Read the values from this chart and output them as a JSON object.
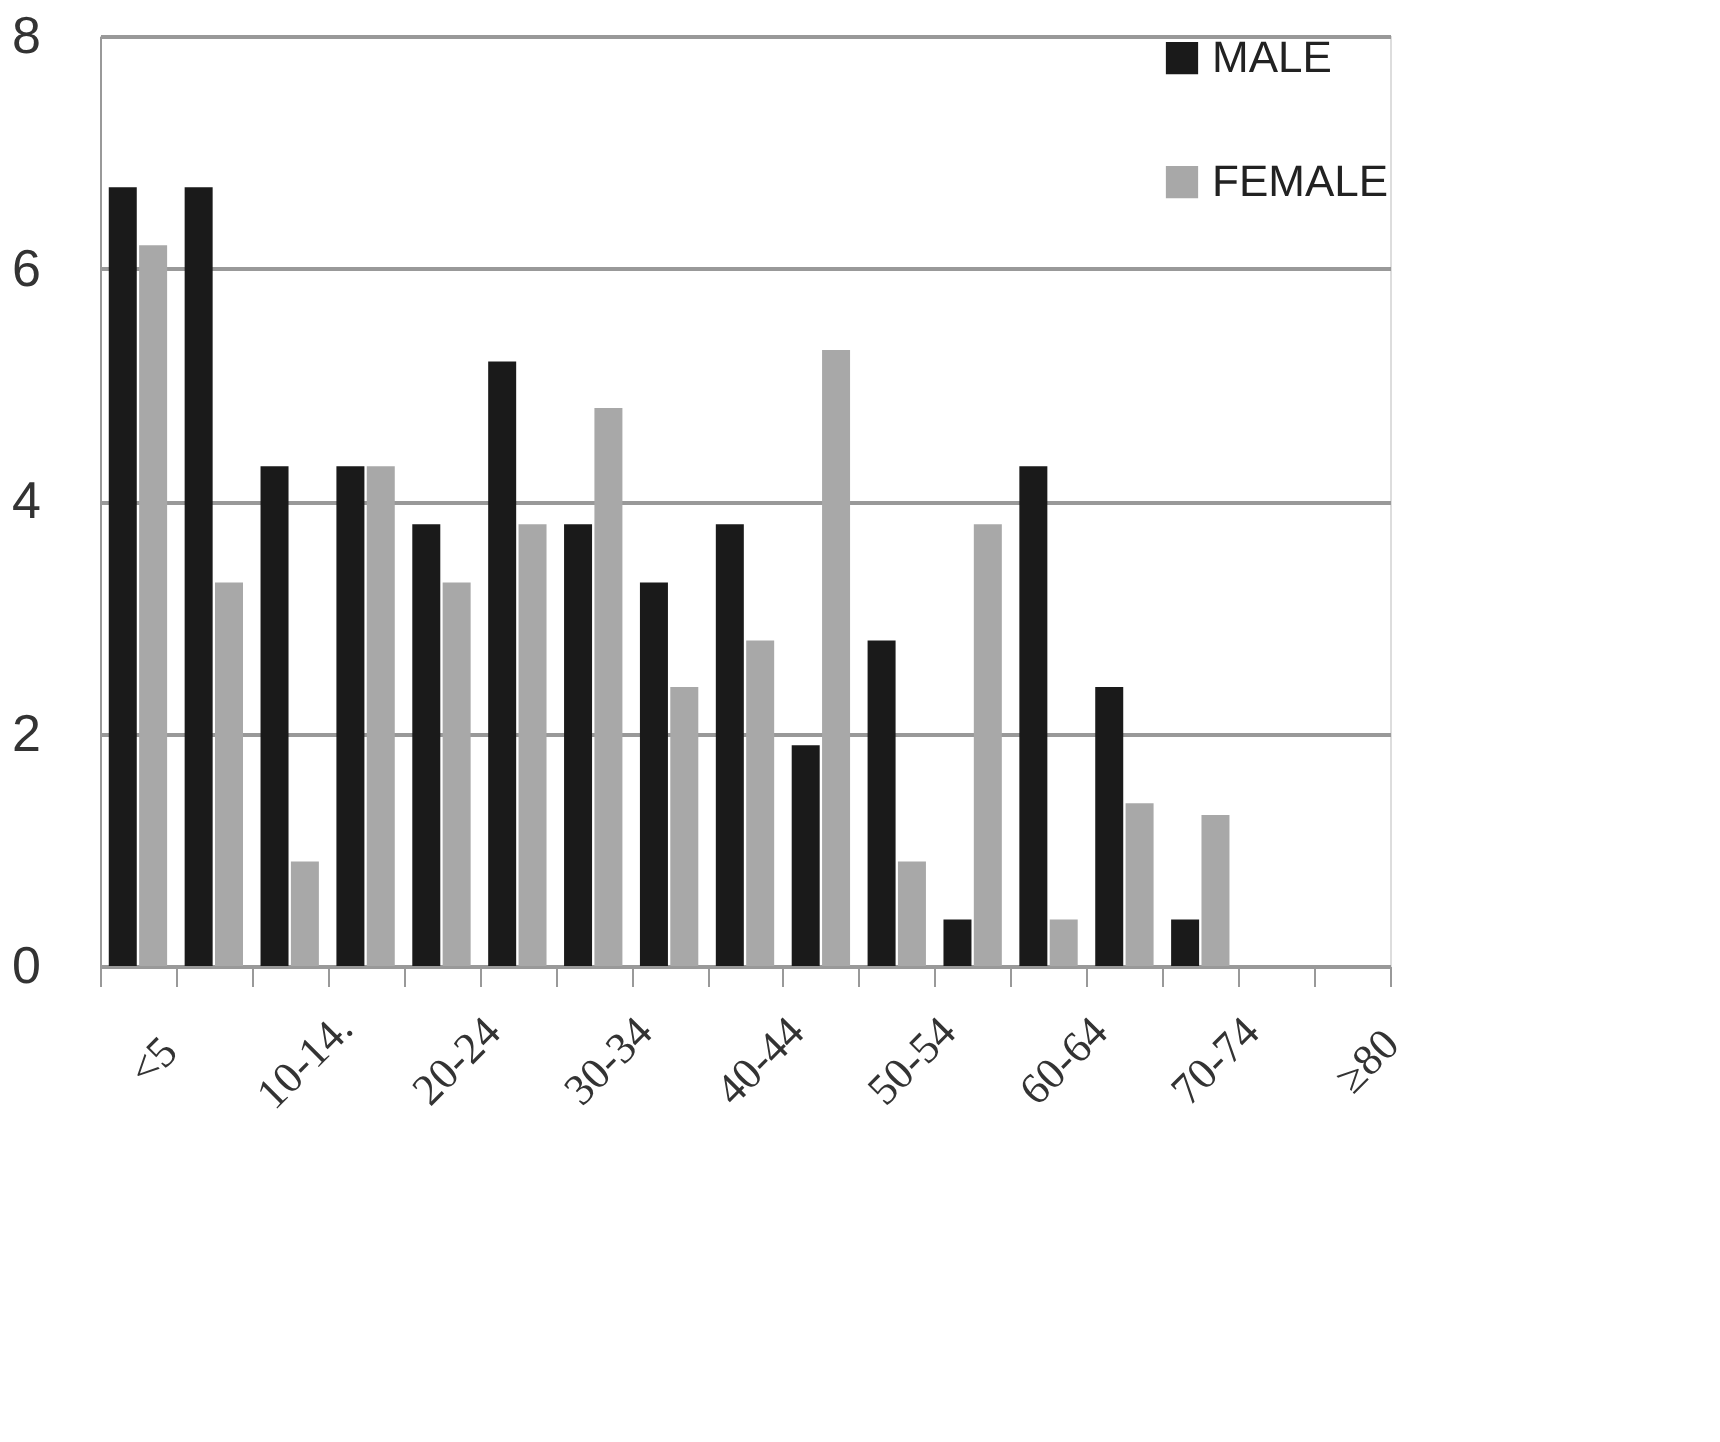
{
  "chart_data": {
    "type": "bar",
    "categories": [
      "<5",
      null,
      "10-14.",
      null,
      "20-24",
      null,
      "30-34",
      null,
      "40-44",
      null,
      "50-54",
      null,
      "60-64",
      null,
      "70-74",
      null,
      "≥80"
    ],
    "series": [
      {
        "name": "MALE",
        "color": "#1a1a1a",
        "values": [
          6.7,
          6.7,
          4.3,
          4.3,
          3.8,
          5.2,
          3.8,
          3.3,
          3.8,
          1.9,
          2.8,
          0.4,
          4.3,
          2.4,
          0.4,
          null,
          null
        ]
      },
      {
        "name": "FEMALE",
        "color": "#a8a8a8",
        "values": [
          6.2,
          3.3,
          0.9,
          4.3,
          3.3,
          3.8,
          4.8,
          2.4,
          2.8,
          5.3,
          0.9,
          3.8,
          0.4,
          1.4,
          1.3,
          null,
          null
        ]
      }
    ],
    "ylim": [
      0,
      8
    ],
    "yticks": [
      0,
      2,
      4,
      6,
      8
    ],
    "grid": "y",
    "legend": "top right"
  }
}
